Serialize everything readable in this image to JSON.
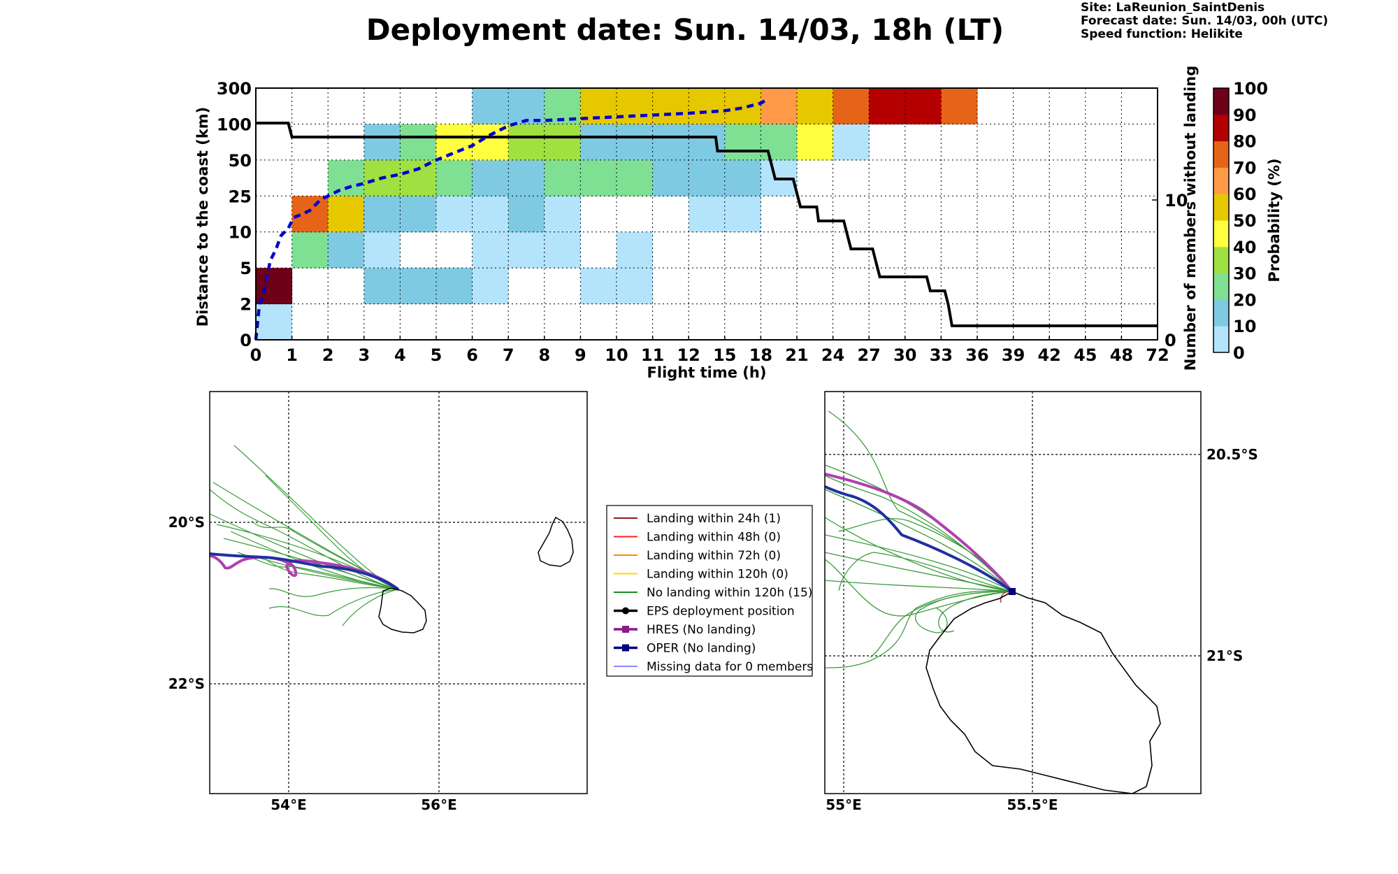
{
  "title": "Deployment date: Sun. 14/03, 18h (LT)",
  "info": {
    "site": "Site: LaReunion_SaintDenis",
    "forecast": "Forecast date: Sun. 14/03, 00h (UTC)",
    "speed": "Speed function: Helikite"
  },
  "chart_data": [
    {
      "type": "heatmap",
      "xlabel": "Flight time (h)",
      "ylabel": "Distance to the coast (km)",
      "y2label": "Number of members without landing",
      "colorbar_label": "Probability (%)",
      "x_ticks": [
        "0",
        "1",
        "2",
        "3",
        "4",
        "5",
        "6",
        "7",
        "8",
        "9",
        "10",
        "11",
        "12",
        "15",
        "18",
        "21",
        "24",
        "27",
        "30",
        "33",
        "36",
        "39",
        "42",
        "45",
        "48",
        "72"
      ],
      "y_ticks": [
        "0",
        "2",
        "5",
        "10",
        "25",
        "50",
        "100",
        "300"
      ],
      "y2_ticks": [
        {
          "label": "0",
          "value": 0
        },
        {
          "label": "10",
          "value": 10
        }
      ],
      "y2_range": [
        0,
        18
      ],
      "colorbar_ticks": [
        "0",
        "10",
        "20",
        "30",
        "40",
        "50",
        "60",
        "70",
        "80",
        "90",
        "100"
      ],
      "colorbar_colors": [
        "#b4e4fb",
        "#7ecae3",
        "#7fe094",
        "#a0e040",
        "#ffff40",
        "#e6c800",
        "#ff9a48",
        "#e66418",
        "#b40000",
        "#6e0018"
      ],
      "cells": [
        {
          "x": 0,
          "y": 0,
          "p": 5
        },
        {
          "x": 0,
          "y": 1,
          "p": 95
        },
        {
          "x": 1,
          "y": 2,
          "p": 25
        },
        {
          "x": 1,
          "y": 3,
          "p": 75
        },
        {
          "x": 2,
          "y": 2,
          "p": 15
        },
        {
          "x": 2,
          "y": 3,
          "p": 55
        },
        {
          "x": 2,
          "y": 4,
          "p": 25
        },
        {
          "x": 3,
          "y": 1,
          "p": 15
        },
        {
          "x": 3,
          "y": 2,
          "p": 5
        },
        {
          "x": 3,
          "y": 3,
          "p": 15
        },
        {
          "x": 3,
          "y": 4,
          "p": 35
        },
        {
          "x": 3,
          "y": 5,
          "p": 15
        },
        {
          "x": 4,
          "y": 1,
          "p": 15
        },
        {
          "x": 4,
          "y": 3,
          "p": 15
        },
        {
          "x": 4,
          "y": 4,
          "p": 35
        },
        {
          "x": 4,
          "y": 5,
          "p": 25
        },
        {
          "x": 5,
          "y": 1,
          "p": 15
        },
        {
          "x": 5,
          "y": 3,
          "p": 5
        },
        {
          "x": 5,
          "y": 4,
          "p": 25
        },
        {
          "x": 5,
          "y": 5,
          "p": 45
        },
        {
          "x": 6,
          "y": 1,
          "p": 5
        },
        {
          "x": 6,
          "y": 2,
          "p": 5
        },
        {
          "x": 6,
          "y": 3,
          "p": 5
        },
        {
          "x": 6,
          "y": 4,
          "p": 15
        },
        {
          "x": 6,
          "y": 5,
          "p": 45
        },
        {
          "x": 6,
          "y": 6,
          "p": 15
        },
        {
          "x": 7,
          "y": 2,
          "p": 5
        },
        {
          "x": 7,
          "y": 3,
          "p": 15
        },
        {
          "x": 7,
          "y": 4,
          "p": 15
        },
        {
          "x": 7,
          "y": 5,
          "p": 35
        },
        {
          "x": 7,
          "y": 6,
          "p": 15
        },
        {
          "x": 8,
          "y": 2,
          "p": 5
        },
        {
          "x": 8,
          "y": 3,
          "p": 5
        },
        {
          "x": 8,
          "y": 4,
          "p": 25
        },
        {
          "x": 8,
          "y": 5,
          "p": 35
        },
        {
          "x": 8,
          "y": 6,
          "p": 25
        },
        {
          "x": 9,
          "y": 1,
          "p": 5
        },
        {
          "x": 9,
          "y": 4,
          "p": 25
        },
        {
          "x": 9,
          "y": 5,
          "p": 15
        },
        {
          "x": 9,
          "y": 6,
          "p": 55
        },
        {
          "x": 10,
          "y": 1,
          "p": 5
        },
        {
          "x": 10,
          "y": 2,
          "p": 5
        },
        {
          "x": 10,
          "y": 4,
          "p": 25
        },
        {
          "x": 10,
          "y": 5,
          "p": 15
        },
        {
          "x": 10,
          "y": 6,
          "p": 55
        },
        {
          "x": 11,
          "y": 4,
          "p": 15
        },
        {
          "x": 11,
          "y": 5,
          "p": 15
        },
        {
          "x": 11,
          "y": 6,
          "p": 55
        },
        {
          "x": 12,
          "y": 3,
          "p": 5
        },
        {
          "x": 12,
          "y": 4,
          "p": 15
        },
        {
          "x": 12,
          "y": 5,
          "p": 15
        },
        {
          "x": 12,
          "y": 6,
          "p": 55
        },
        {
          "x": 13,
          "y": 3,
          "p": 5
        },
        {
          "x": 13,
          "y": 4,
          "p": 15
        },
        {
          "x": 13,
          "y": 5,
          "p": 25
        },
        {
          "x": 13,
          "y": 6,
          "p": 55
        },
        {
          "x": 14,
          "y": 4,
          "p": 5
        },
        {
          "x": 14,
          "y": 5,
          "p": 25
        },
        {
          "x": 14,
          "y": 6,
          "p": 65
        },
        {
          "x": 15,
          "y": 5,
          "p": 45
        },
        {
          "x": 15,
          "y": 6,
          "p": 55
        },
        {
          "x": 16,
          "y": 5,
          "p": 5
        },
        {
          "x": 16,
          "y": 6,
          "p": 75
        },
        {
          "x": 17,
          "y": 6,
          "p": 85
        },
        {
          "x": 18,
          "y": 6,
          "p": 85
        },
        {
          "x": 19,
          "y": 6,
          "p": 75
        }
      ],
      "members_without_landing_step": [
        {
          "x": 0,
          "y": 15.5
        },
        {
          "x": 0.9,
          "y": 15.5
        },
        {
          "x": 1,
          "y": 14.5
        },
        {
          "x": 12.75,
          "y": 14.5
        },
        {
          "x": 12.8,
          "y": 13.5
        },
        {
          "x": 14.2,
          "y": 13.5
        },
        {
          "x": 14.3,
          "y": 12.5
        },
        {
          "x": 14.4,
          "y": 11.5
        },
        {
          "x": 14.9,
          "y": 11.5
        },
        {
          "x": 15.0,
          "y": 10.5
        },
        {
          "x": 15.1,
          "y": 9.5
        },
        {
          "x": 15.55,
          "y": 9.5
        },
        {
          "x": 15.6,
          "y": 8.5
        },
        {
          "x": 16.3,
          "y": 8.5
        },
        {
          "x": 16.4,
          "y": 7.5
        },
        {
          "x": 16.5,
          "y": 6.5
        },
        {
          "x": 17.1,
          "y": 6.5
        },
        {
          "x": 17.2,
          "y": 5.5
        },
        {
          "x": 17.3,
          "y": 4.5
        },
        {
          "x": 18.6,
          "y": 4.5
        },
        {
          "x": 18.7,
          "y": 3.5
        },
        {
          "x": 19.1,
          "y": 3.5
        },
        {
          "x": 19.2,
          "y": 2.5
        },
        {
          "x": 19.3,
          "y": 1.0
        },
        {
          "x": 25,
          "y": 1.0
        }
      ],
      "median_distance_dashed": [
        {
          "x": 0,
          "y": 0
        },
        {
          "x": 0.05,
          "y": 0.5
        },
        {
          "x": 0.1,
          "y": 1.0
        },
        {
          "x": 0.2,
          "y": 1.2
        },
        {
          "x": 0.4,
          "y": 2.2
        },
        {
          "x": 0.55,
          "y": 2.5
        },
        {
          "x": 0.7,
          "y": 2.9
        },
        {
          "x": 0.9,
          "y": 3.1
        },
        {
          "x": 1.05,
          "y": 3.4
        },
        {
          "x": 1.3,
          "y": 3.5
        },
        {
          "x": 1.5,
          "y": 3.6
        },
        {
          "x": 1.8,
          "y": 3.9
        },
        {
          "x": 2,
          "y": 4.0
        },
        {
          "x": 2.3,
          "y": 4.15
        },
        {
          "x": 2.6,
          "y": 4.25
        },
        {
          "x": 3,
          "y": 4.35
        },
        {
          "x": 3.5,
          "y": 4.5
        },
        {
          "x": 4,
          "y": 4.6
        },
        {
          "x": 4.5,
          "y": 4.75
        },
        {
          "x": 5,
          "y": 5.0
        },
        {
          "x": 5.5,
          "y": 5.2
        },
        {
          "x": 6,
          "y": 5.4
        },
        {
          "x": 6.5,
          "y": 5.7
        },
        {
          "x": 7,
          "y": 5.95
        },
        {
          "x": 7.5,
          "y": 6.1
        },
        {
          "x": 8,
          "y": 6.1
        },
        {
          "x": 9,
          "y": 6.15
        },
        {
          "x": 10,
          "y": 6.2
        },
        {
          "x": 11,
          "y": 6.25
        },
        {
          "x": 12,
          "y": 6.3
        },
        {
          "x": 13,
          "y": 6.37
        },
        {
          "x": 13.5,
          "y": 6.45
        },
        {
          "x": 14,
          "y": 6.58
        },
        {
          "x": 14.2,
          "y": 6.7
        }
      ]
    },
    {
      "type": "map",
      "x_ticks": [
        "54°E",
        "56°E"
      ],
      "y_ticks": [
        "20°S",
        "22°S"
      ],
      "lon_range": [
        53.0,
        58.0
      ],
      "lat_range": [
        -23.4,
        -18.4
      ]
    },
    {
      "type": "map",
      "x_ticks": [
        "55°E",
        "55.5°E"
      ],
      "y_ticks": [
        "20.5°S",
        "21°S"
      ],
      "lon_range": [
        54.95,
        55.95
      ],
      "lat_range": [
        -21.4,
        -20.4
      ]
    }
  ],
  "legend": {
    "items": [
      {
        "label": "Landing within 24h (1)",
        "color": "#8b1a1a",
        "kind": "line"
      },
      {
        "label": "Landing within 48h (0)",
        "color": "#ff2020",
        "kind": "line"
      },
      {
        "label": "Landing within 72h (0)",
        "color": "#ff8c00",
        "kind": "line"
      },
      {
        "label": "Landing within 120h (0)",
        "color": "#ffd700",
        "kind": "line"
      },
      {
        "label": "No landing within 120h (15)",
        "color": "#1a8c1a",
        "kind": "line"
      },
      {
        "label": "EPS deployment position",
        "color": "#000000",
        "kind": "dot"
      },
      {
        "label": "HRES (No landing)",
        "color": "#8b1a8b",
        "kind": "square"
      },
      {
        "label": "OPER (No landing)",
        "color": "#000080",
        "kind": "square"
      },
      {
        "label": "Missing data for 0 members",
        "color": "#4040ff",
        "kind": "thin"
      }
    ]
  }
}
